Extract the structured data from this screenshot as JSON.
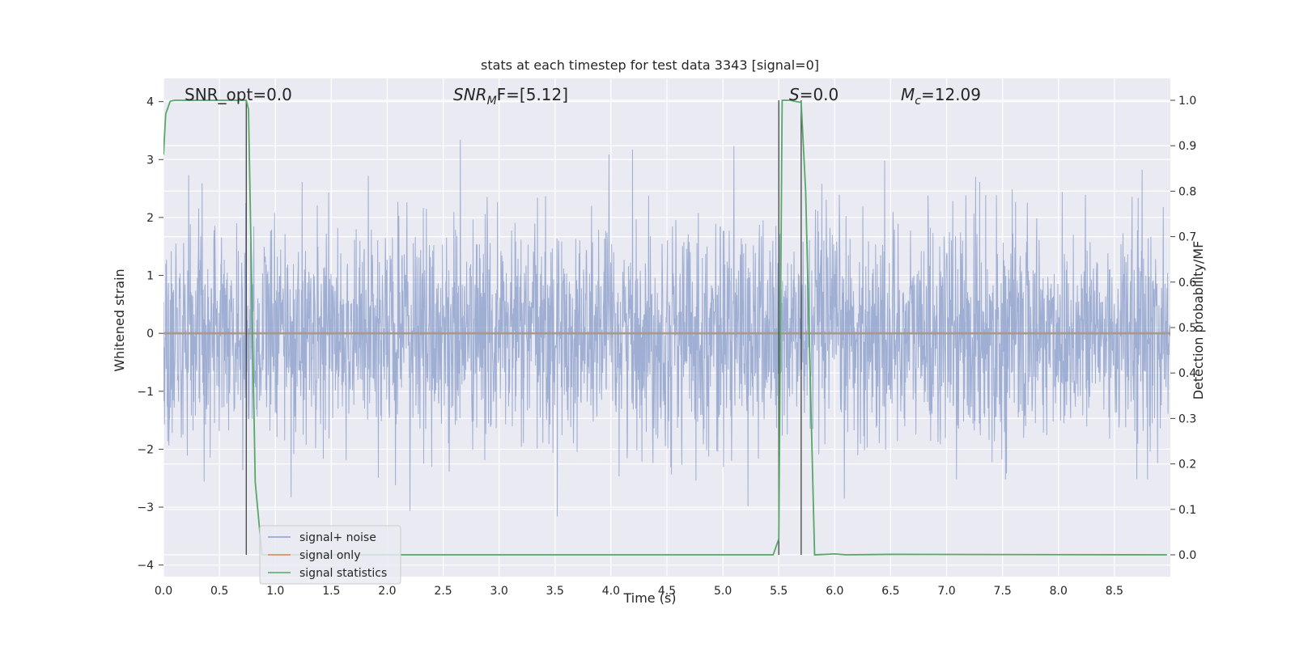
{
  "chart_data": {
    "type": "line",
    "title": "stats at each timestep for test data 3343 [signal=0]",
    "xlabel": "Time (s)",
    "ylabel_left": "Whitened strain",
    "ylabel_right": "Detection probability/MF",
    "xlim": [
      0.0,
      9.0
    ],
    "ylim_left": [
      -4.2,
      4.4
    ],
    "ylim_right": [
      -0.048,
      1.048
    ],
    "x_ticks": [
      "0.0",
      "0.5",
      "1.0",
      "1.5",
      "2.0",
      "2.5",
      "3.0",
      "3.5",
      "4.0",
      "4.5",
      "5.0",
      "5.5",
      "6.0",
      "6.5",
      "7.0",
      "7.5",
      "8.0",
      "8.5"
    ],
    "y_left_ticks": [
      "4",
      "3",
      "2",
      "1",
      "0",
      "−1",
      "−2",
      "−3",
      "−4"
    ],
    "y_right_ticks": [
      "1.0",
      "0.9",
      "0.8",
      "0.7",
      "0.6",
      "0.5",
      "0.4",
      "0.3",
      "0.2",
      "0.1",
      "0.0"
    ],
    "grid": true,
    "legend_position": "lower-left",
    "annotations": {
      "snr_opt": "SNR_opt=0.0",
      "snr_mf_main": "SNR",
      "snr_mf_sub": "M",
      "snr_mf_rest": "F=[5.12]",
      "s_main": "S",
      "s_rest": "=0.0",
      "mc_main": "M",
      "mc_sub": "c",
      "mc_rest": "=12.09"
    },
    "series": [
      {
        "name": "signal+ noise",
        "axis": "left",
        "color": "#8c9fcb",
        "style": "dense noise roughly within [-2.5, 2.5] with spikes to ±4"
      },
      {
        "name": "signal only",
        "axis": "left",
        "color": "#dd8452",
        "x": [
          0.0,
          9.0
        ],
        "values": [
          0.0,
          0.0
        ]
      },
      {
        "name": "signal statistics",
        "axis": "right",
        "color": "#55a868",
        "x": [
          0.0,
          0.02,
          0.06,
          0.1,
          0.7,
          0.74,
          0.76,
          0.82,
          0.88,
          0.9,
          5.45,
          5.5,
          5.53,
          5.6,
          5.7,
          5.74,
          5.82,
          6.0,
          6.1,
          6.5,
          8.97
        ],
        "values": [
          0.88,
          0.97,
          0.998,
          1.0,
          1.0,
          1.0,
          0.98,
          0.16,
          0.0,
          0.0,
          0.0,
          0.035,
          1.0,
          1.0,
          0.995,
          0.8,
          0.0,
          0.002,
          0.0,
          0.001,
          0.0
        ]
      }
    ],
    "vertical_lines": [
      {
        "x": 0.74,
        "y_from": 0.0,
        "y_to": 1.0
      },
      {
        "x": 5.5,
        "y_from": 0.0,
        "y_to": 1.0
      },
      {
        "x": 5.7,
        "y_from": 0.0,
        "y_to": 1.0
      }
    ]
  },
  "colors": {
    "axes_bg": "#eaeaf2",
    "grid": "#ffffff",
    "noise": "#8c9fcb",
    "signal_only": "#dd8452",
    "statistics": "#55a868",
    "vline": "#444444"
  }
}
